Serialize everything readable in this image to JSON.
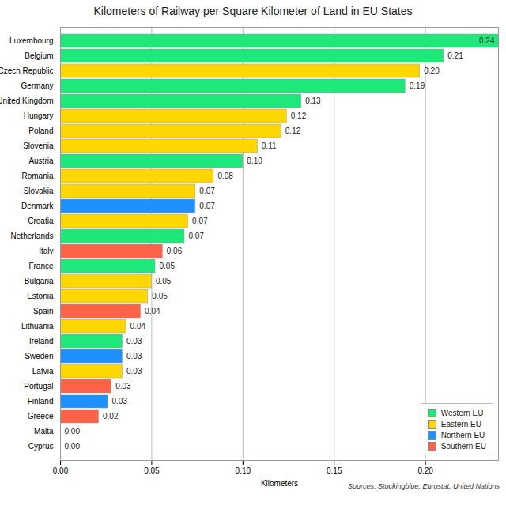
{
  "chart_data": {
    "type": "bar",
    "orientation": "horizontal",
    "title": "Kilometers of Railway per Square Kilometer of Land in EU States",
    "x_label": "Kilometers",
    "source": "Sources: Stockingblue, Eurostat, United Nations",
    "categories": [
      "Luxembourg",
      "Belgium",
      "Czech Republic",
      "Germany",
      "United Kingdom",
      "Hungary",
      "Poland",
      "Slovenia",
      "Austria",
      "Romania",
      "Slovakia",
      "Denmark",
      "Croatia",
      "Netherlands",
      "Italy",
      "France",
      "Bulgaria",
      "Estonia",
      "Spain",
      "Lithuania",
      "Ireland",
      "Sweden",
      "Latvia",
      "Portugal",
      "Finland",
      "Greece",
      "Malta",
      "Cyprus"
    ],
    "series": [
      {
        "name": "Western EU",
        "color": "#1ee87a",
        "values": [
          0.24,
          0.21,
          null,
          0.189,
          0.132,
          null,
          null,
          null,
          0.1,
          null,
          null,
          null,
          null,
          0.068,
          null,
          0.052,
          null,
          null,
          null,
          null,
          0.034,
          null,
          null,
          null,
          null,
          null,
          null,
          null
        ],
        "value_labels": [
          "0.24",
          "0.21",
          null,
          "0.19",
          "0.13",
          null,
          null,
          null,
          "0.10",
          null,
          null,
          null,
          null,
          "0.07",
          null,
          "0.05",
          null,
          null,
          null,
          null,
          "0.03",
          null,
          null,
          null,
          null,
          null,
          null,
          null
        ]
      },
      {
        "name": "Eastern EU",
        "color": "#ffd700",
        "values": [
          null,
          null,
          0.197,
          null,
          null,
          0.124,
          0.121,
          0.108,
          null,
          0.084,
          0.074,
          null,
          0.07,
          null,
          null,
          null,
          0.05,
          0.048,
          null,
          0.036,
          null,
          null,
          0.034,
          null,
          null,
          null,
          null,
          null
        ],
        "value_labels": [
          null,
          null,
          "0.20",
          null,
          null,
          "0.12",
          "0.12",
          "0.11",
          null,
          "0.08",
          "0.07",
          null,
          "0.07",
          null,
          null,
          null,
          "0.05",
          "0.05",
          null,
          "0.04",
          null,
          null,
          "0.03",
          null,
          null,
          null,
          null,
          null
        ]
      },
      {
        "name": "Northern EU",
        "color": "#1e90ff",
        "values": [
          null,
          null,
          null,
          null,
          null,
          null,
          null,
          null,
          null,
          null,
          null,
          0.074,
          null,
          null,
          null,
          null,
          null,
          null,
          null,
          null,
          null,
          0.034,
          null,
          null,
          0.026,
          null,
          null,
          null
        ],
        "value_labels": [
          null,
          null,
          null,
          null,
          null,
          null,
          null,
          null,
          null,
          null,
          null,
          "0.07",
          null,
          null,
          null,
          null,
          null,
          null,
          null,
          null,
          null,
          "0.03",
          null,
          null,
          "0.03",
          null,
          null,
          null
        ]
      },
      {
        "name": "Southern EU",
        "color": "#ff6347",
        "values": [
          null,
          null,
          null,
          null,
          null,
          null,
          null,
          null,
          null,
          null,
          null,
          null,
          null,
          null,
          0.056,
          null,
          null,
          null,
          0.044,
          null,
          null,
          null,
          null,
          0.028,
          null,
          0.021,
          0,
          0
        ],
        "value_labels": [
          null,
          null,
          null,
          null,
          null,
          null,
          null,
          null,
          null,
          null,
          null,
          null,
          null,
          null,
          "0.06",
          null,
          null,
          null,
          "0.04",
          null,
          null,
          null,
          null,
          "0.03",
          null,
          "0.02",
          "0.00",
          "0.00"
        ]
      }
    ],
    "xlim": [
      0,
      0.24
    ],
    "xticks": [
      {
        "value": 0,
        "label": "0.00"
      },
      {
        "value": 0.05,
        "label": "0.05"
      },
      {
        "value": 0.1,
        "label": "0.10"
      },
      {
        "value": 0.15,
        "label": "0.15"
      },
      {
        "value": 0.2,
        "label": "0.20"
      }
    ],
    "grid": true,
    "data_labels": true,
    "legend": "bottom-right"
  }
}
